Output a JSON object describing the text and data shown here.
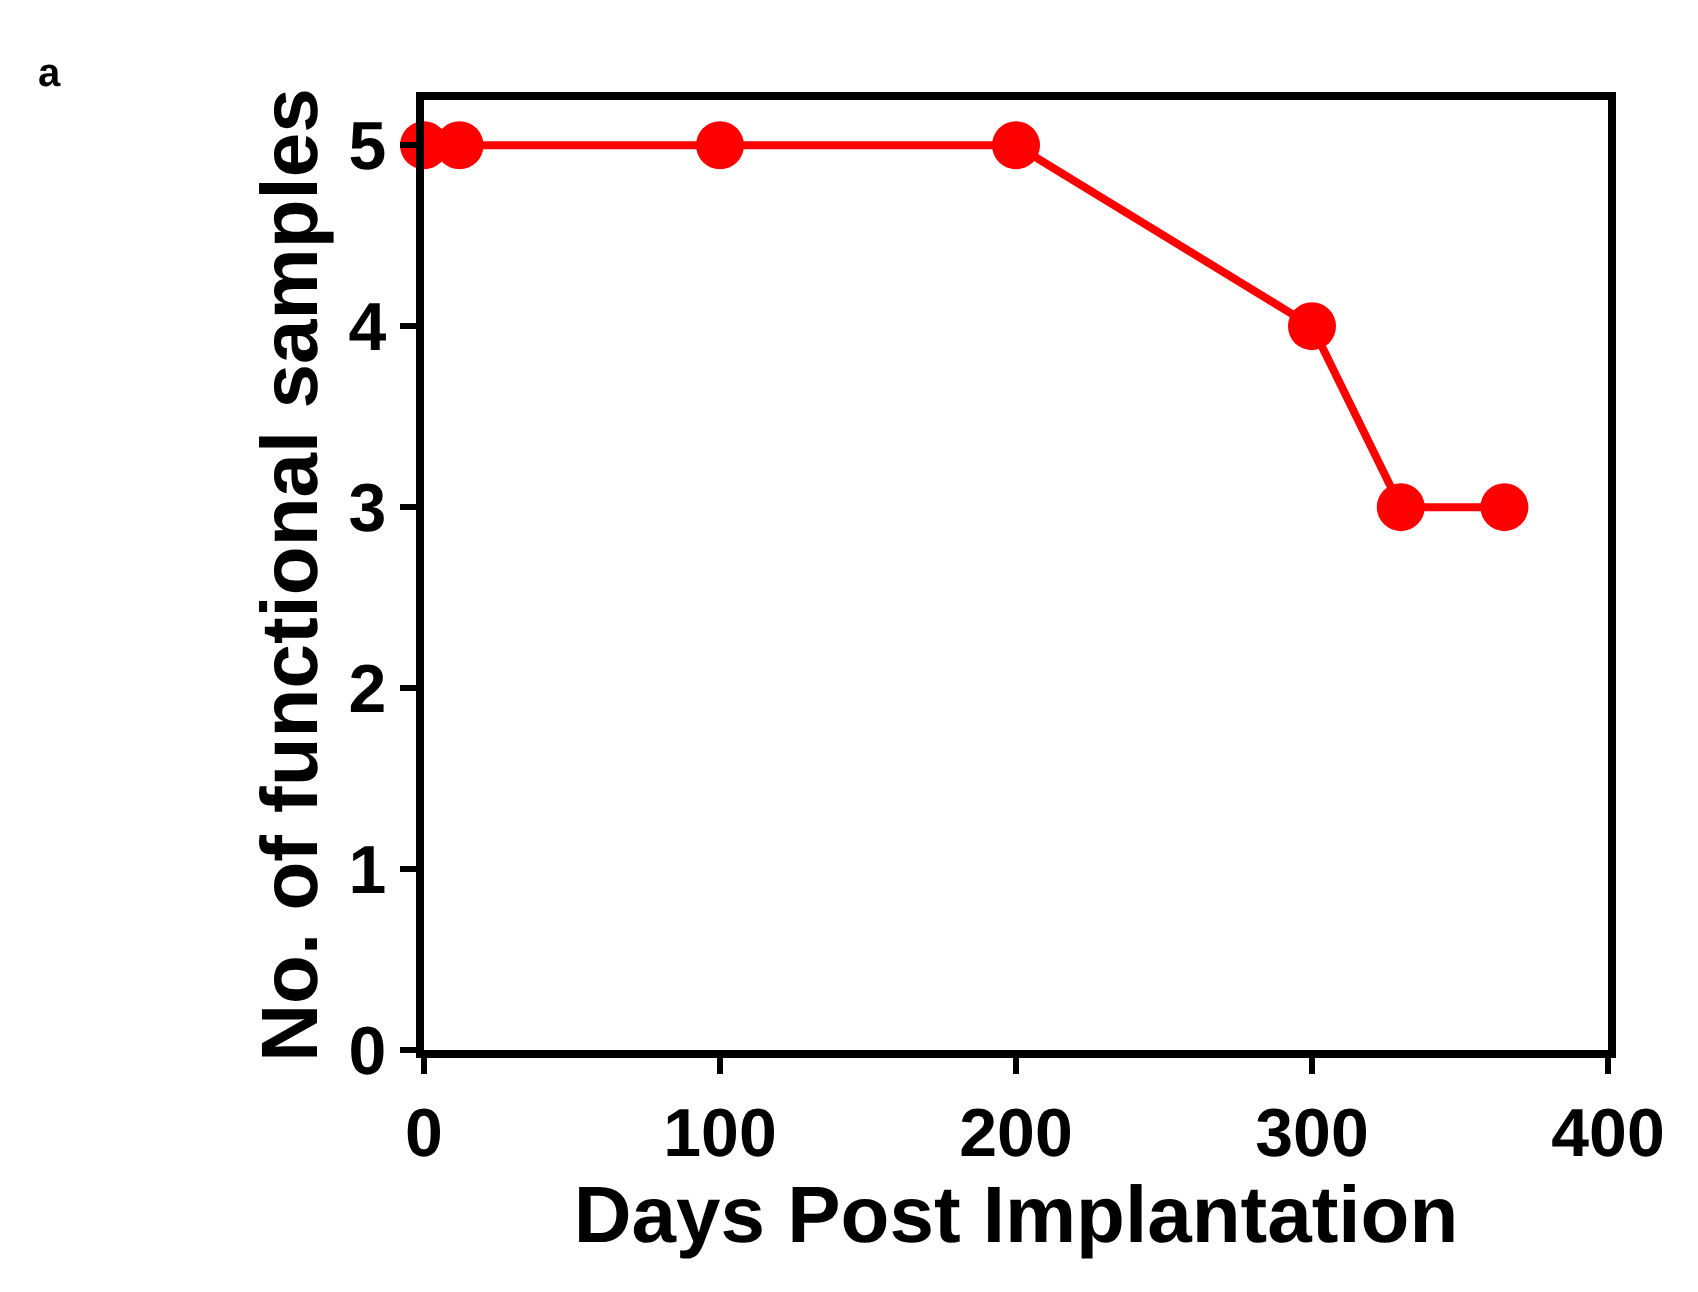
{
  "chart_data": {
    "type": "line",
    "xlabel": "Days Post Implantation",
    "ylabel": "No. of functional samples",
    "annotations": [
      "a"
    ],
    "x": [
      0,
      12,
      100,
      200,
      300,
      330,
      365
    ],
    "series": [
      {
        "color": "#ff0000",
        "values": [
          5,
          5,
          5,
          5,
          4,
          3,
          3
        ]
      }
    ],
    "xlim": [
      0,
      400
    ],
    "xticks": [
      0,
      100,
      200,
      300,
      400
    ],
    "ylim": [
      0,
      5.25
    ],
    "yticks": [
      0,
      1,
      2,
      3,
      4,
      5
    ],
    "grid": false,
    "marker": "circle",
    "line_style": "solid"
  }
}
